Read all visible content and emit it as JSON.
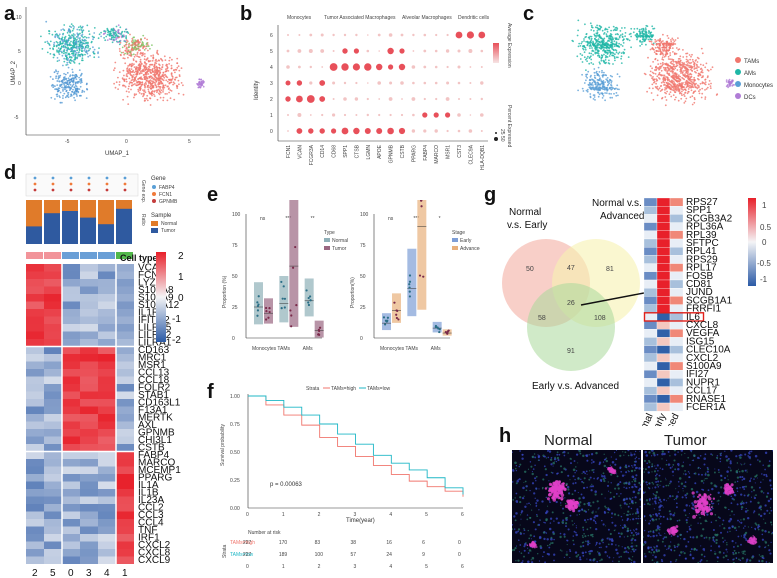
{
  "panels": {
    "a": "a",
    "b": "b",
    "c": "c",
    "d": "d",
    "e": "e",
    "f": "f",
    "g": "g",
    "h": "h"
  },
  "colors": {
    "tams": "#f0766d",
    "ams": "#1fb7a6",
    "monocytes": "#5a9fd6",
    "dcs": "#b07cd6",
    "heat_high": "#d7191c",
    "heat_low": "#2c7bb6",
    "normal_box": "#8fb0b8",
    "tumor_box": "#9a6781",
    "early_box": "#7e9ed6",
    "advanced_box": "#e8b07c"
  },
  "umap": {
    "xlabel": "UMAP_1",
    "ylabel": "UMAP_2",
    "xticks": [
      "-5",
      "0",
      "5"
    ],
    "yticks": [
      "10",
      "5",
      "0",
      "-5"
    ],
    "legend": [
      {
        "name": "TAMs",
        "color": "#f0766d"
      },
      {
        "name": "AMs",
        "color": "#1fb7a6"
      },
      {
        "name": "Monocytes",
        "color": "#5a9fd6"
      },
      {
        "name": "DCs",
        "color": "#b07cd6"
      }
    ]
  },
  "dotplot": {
    "ylabel": "Identity",
    "groups": [
      "Monocytes",
      "Tumor Associated Macrophages",
      "Alveolar Macrophages",
      "Dendritic cells"
    ],
    "genes": [
      "FCN1",
      "VCAN",
      "FCGR3A",
      "CD14",
      "CD68",
      "SPP1",
      "CTSB",
      "LGMN",
      "APOE",
      "GPNMB",
      "CSTB",
      "PPARG",
      "FABP4",
      "MARCO",
      "MSR1",
      "CST3",
      "CLEC9A",
      "HLA-DQB1"
    ],
    "identities": [
      "0",
      "1",
      "2",
      "3",
      "4",
      "5",
      "6"
    ],
    "legend_expr": "Average Expression",
    "legend_pct": "Percent Expressed",
    "legend_pct_vals": [
      "0",
      "25",
      "50"
    ]
  },
  "heatmap_d": {
    "cell_type_label": "Cell type",
    "gene_legend_title": "Gene",
    "gene_legend": [
      "FABP4",
      "FCN1",
      "GPNMB"
    ],
    "sample_legend_title": "Sample",
    "sample_legend": [
      "Normal",
      "Tumor"
    ],
    "ratio_label": "Ratio",
    "gexp_label": "Gene exp.",
    "scale": [
      "2",
      "1",
      "0",
      "-1",
      "-2"
    ],
    "genes": [
      "VCAN",
      "FCN1",
      "LYZ",
      "S100A8",
      "S100A9",
      "S100A12",
      "IL1RN",
      "IFITM2",
      "LILRA5",
      "LILRB2",
      "LILRA1",
      "CD163",
      "MRC1",
      "MSR1",
      "CCL13",
      "CCL18",
      "FOLR2",
      "STAB1",
      "CD163L1",
      "F13A1",
      "MERTK",
      "AXL",
      "GPNMB",
      "CHI3L1",
      "CSTB",
      "FABP4",
      "MARCO",
      "MCEMP1",
      "PPARG",
      "IL1A",
      "IL1B",
      "IL23A",
      "CCL2",
      "CCL3",
      "CCL4",
      "TNF",
      "IRF1",
      "CXCL2",
      "CXCL8",
      "CXCL9"
    ],
    "clusters": [
      "2",
      "5",
      "0",
      "3",
      "4",
      "1"
    ]
  },
  "box_e": [
    {
      "ylabel": "Proportion (%)",
      "legend_title": "Type",
      "legend": [
        "Normal",
        "Tumor"
      ],
      "cats": [
        "Monocytes",
        "TAMs",
        "AMs"
      ],
      "sig": [
        "ns",
        "***",
        "**"
      ],
      "yticks": [
        "100",
        "75",
        "50",
        "25",
        "0"
      ]
    },
    {
      "ylabel": "Proportion(%)",
      "legend_title": "Stage",
      "legend": [
        "Early",
        "Advanced"
      ],
      "cats": [
        "Monocytes",
        "TAMs",
        "AMs"
      ],
      "sig": [
        "ns",
        "***",
        "*"
      ],
      "yticks": [
        "100",
        "75",
        "50",
        "25",
        "0"
      ]
    }
  ],
  "survival": {
    "strata_label": "Strata",
    "legend": [
      "TAMs=high",
      "TAMs=low"
    ],
    "pval": "p = 0.00063",
    "ylabel": "Survival probability",
    "xlabel": "Time(year)",
    "xticks": [
      "0",
      "1",
      "2",
      "3",
      "4",
      "5",
      "6"
    ],
    "yticks": [
      "1.00",
      "0.75",
      "0.50",
      "0.25",
      "0.00"
    ],
    "risk_title": "Number at risk",
    "risk_strata": "Strata",
    "risk_high": [
      "227",
      "170",
      "83",
      "38",
      "16",
      "6",
      "0"
    ],
    "risk_low": [
      "227",
      "189",
      "100",
      "57",
      "24",
      "9",
      "0"
    ]
  },
  "venn": {
    "sets": [
      "Normal\nv.s. Early",
      "Normal v.s.\nAdvanced",
      "Early v.s. Advanced"
    ],
    "set1": "Normal",
    "set1b": "v.s. Early",
    "set2": "Normal v.s.",
    "set2b": "Advanced",
    "set3": "Early v.s. Advanced",
    "counts": {
      "a": "50",
      "ab": "47",
      "b": "81",
      "abc": "26",
      "ac": "58",
      "bc": "108",
      "c": "91"
    }
  },
  "heatmap_g": {
    "genes": [
      "RPS27",
      "SPP1",
      "SCGB3A2",
      "RPL36A",
      "RPL39",
      "SFTPC",
      "RPL41",
      "RPS29",
      "RPL17",
      "FOSB",
      "CD81",
      "JUND",
      "SCGB1A1",
      "FRRFI1",
      "IL6",
      "CXCL8",
      "VEGFA",
      "ISG15",
      "CLEC10A",
      "CXCL2",
      "S100A9",
      "IFI27",
      "NUPR1",
      "CCL17",
      "RNASE1",
      "FCER1A"
    ],
    "cols": [
      "Normal",
      "Early",
      "Advanced"
    ],
    "scale": [
      "1",
      "0.5",
      "0",
      "-0.5",
      "-1"
    ],
    "highlight": "IL6"
  },
  "ihc": {
    "normal": "Normal",
    "tumor": "Tumor"
  }
}
